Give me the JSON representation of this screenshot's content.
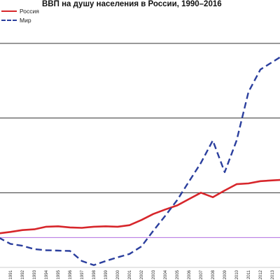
{
  "chart_data": {
    "type": "line",
    "title": "ВВП на душу населения в России, 1990–2016",
    "x": [
      1990,
      1991,
      1992,
      1993,
      1994,
      1995,
      1996,
      1997,
      1998,
      1999,
      2000,
      2001,
      2002,
      2003,
      2004,
      2005,
      2006,
      2007,
      2008,
      2009,
      2010,
      2011,
      2012,
      2013,
      2014
    ],
    "x_tick_labels": [
      "1991",
      "1992",
      "1993",
      "1994",
      "1995",
      "1996",
      "1997",
      "1998",
      "1999",
      "2000",
      "2001",
      "2002",
      "2003",
      "2004",
      "2005",
      "2006",
      "2007",
      "2008",
      "2009",
      "2010",
      "2011",
      "2012",
      "2013",
      "2014"
    ],
    "series": [
      {
        "name": "Россия",
        "color": "#d7262b",
        "style": "solid",
        "values": [
          9.1,
          9.5,
          10.0,
          10.2,
          10.9,
          11.0,
          10.7,
          10.6,
          10.9,
          11.0,
          10.9,
          11.3,
          12.7,
          14.3,
          15.5,
          16.6,
          18.3,
          20.0,
          18.8,
          20.6,
          22.3,
          22.5,
          23.1,
          23.3,
          23.5
        ]
      },
      {
        "name": "Мир",
        "color": "#2b3f9e",
        "style": "dashed",
        "values": [
          8.0,
          6.3,
          5.8,
          4.9,
          4.6,
          4.5,
          4.4,
          1.7,
          0.6,
          1.7,
          2.7,
          3.6,
          5.6,
          9.8,
          13.8,
          18.0,
          23.0,
          28.0,
          34.0,
          25.5,
          34.0,
          47.0,
          53.0,
          55.0,
          57.0
        ]
      }
    ],
    "ylim": [
      0,
      60
    ],
    "grid": {
      "horizontal_lines": [
        {
          "value": 20,
          "color": "#333333"
        },
        {
          "value": 40,
          "color": "#333333"
        },
        {
          "value": 60,
          "color": "#333333"
        },
        {
          "value": 8,
          "color": "#b06ee0"
        }
      ]
    },
    "legend": "top-left"
  }
}
